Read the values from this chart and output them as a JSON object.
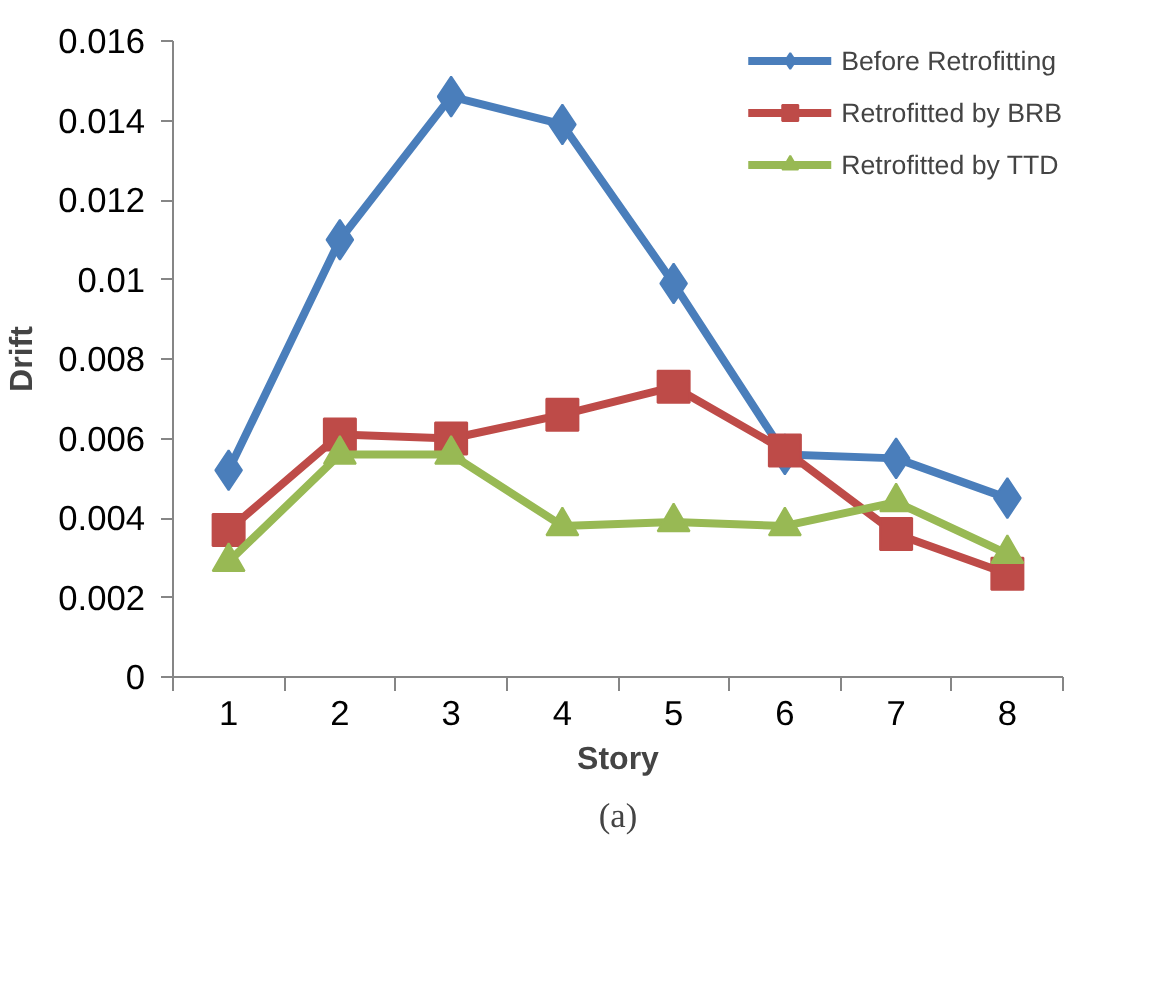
{
  "chart_data": {
    "type": "line",
    "xlabel": "Story",
    "ylabel": "Drift",
    "annotations": [
      "(a)"
    ],
    "categories": [
      "1",
      "2",
      "3",
      "4",
      "5",
      "6",
      "7",
      "8"
    ],
    "series": [
      {
        "name": "Before Retrofitting",
        "color": "#4a7ebb",
        "marker": "diamond",
        "values": [
          0.0052,
          0.011,
          0.0146,
          0.0139,
          0.0099,
          0.0056,
          0.0055,
          0.0045
        ]
      },
      {
        "name": "Retrofitted by BRB",
        "color": "#be4b48",
        "marker": "square",
        "values": [
          0.0037,
          0.0061,
          0.006,
          0.0066,
          0.0073,
          0.0057,
          0.0036,
          0.0026
        ]
      },
      {
        "name": "Retrofitted by TTD",
        "color": "#98b954",
        "marker": "triangle",
        "values": [
          0.0029,
          0.0056,
          0.0056,
          0.0038,
          0.0039,
          0.0038,
          0.0044,
          0.0031
        ]
      }
    ],
    "ylim": [
      0,
      0.016
    ],
    "yticks": [
      0,
      0.002,
      0.004,
      0.006,
      0.008,
      0.01,
      0.012,
      0.014,
      0.016
    ],
    "grid": false,
    "legend": "top right",
    "line_style": "solid"
  }
}
